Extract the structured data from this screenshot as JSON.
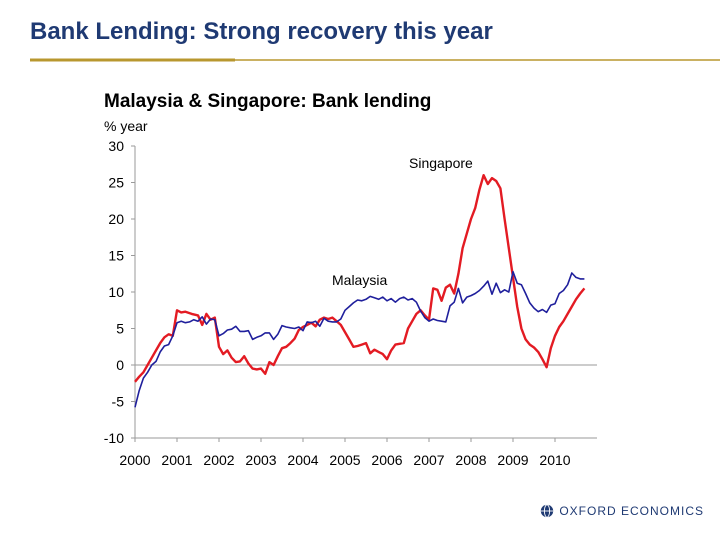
{
  "slide": {
    "title": "Bank Lending: Strong recovery this year",
    "brand": "OXFORD ECONOMICS",
    "colors": {
      "title": "#1f3a73",
      "rule": "#b8972f",
      "brand": "#1f3a73"
    }
  },
  "chart_data": {
    "type": "line",
    "title": "Malaysia & Singapore: Bank lending",
    "ylabel": "% year",
    "xlabel": "",
    "ylim": [
      -10,
      30
    ],
    "yticks": [
      30,
      25,
      20,
      15,
      10,
      5,
      0,
      -5,
      -10
    ],
    "xlim": [
      2000,
      2011
    ],
    "xticks": [
      "2000",
      "2001",
      "2002",
      "2003",
      "2004",
      "2005",
      "2006",
      "2007",
      "2008",
      "2009",
      "2010"
    ],
    "grid": false,
    "series": [
      {
        "name": "Singapore",
        "color": "#e31b23",
        "points": [
          [
            2000.0,
            -2.3
          ],
          [
            2000.1,
            -1.6
          ],
          [
            2000.2,
            -1.0
          ],
          [
            2000.3,
            0.0
          ],
          [
            2000.4,
            1.0
          ],
          [
            2000.5,
            2.0
          ],
          [
            2000.6,
            3.0
          ],
          [
            2000.7,
            3.8
          ],
          [
            2000.8,
            4.2
          ],
          [
            2000.9,
            4.0
          ],
          [
            2001.0,
            7.5
          ],
          [
            2001.1,
            7.2
          ],
          [
            2001.2,
            7.3
          ],
          [
            2001.35,
            7.0
          ],
          [
            2001.5,
            6.8
          ],
          [
            2001.6,
            5.5
          ],
          [
            2001.7,
            7.0
          ],
          [
            2001.8,
            6.2
          ],
          [
            2001.9,
            6.5
          ],
          [
            2002.0,
            2.5
          ],
          [
            2002.1,
            1.5
          ],
          [
            2002.2,
            2.0
          ],
          [
            2002.3,
            1.0
          ],
          [
            2002.4,
            0.4
          ],
          [
            2002.5,
            0.5
          ],
          [
            2002.6,
            1.2
          ],
          [
            2002.7,
            0.2
          ],
          [
            2002.8,
            -0.5
          ],
          [
            2002.9,
            -0.6
          ],
          [
            2003.0,
            -0.5
          ],
          [
            2003.1,
            -1.2
          ],
          [
            2003.2,
            0.4
          ],
          [
            2003.3,
            0.0
          ],
          [
            2003.4,
            1.2
          ],
          [
            2003.5,
            2.3
          ],
          [
            2003.6,
            2.5
          ],
          [
            2003.7,
            3.0
          ],
          [
            2003.8,
            3.6
          ],
          [
            2003.9,
            4.8
          ],
          [
            2004.0,
            5.2
          ],
          [
            2004.1,
            5.5
          ],
          [
            2004.2,
            5.8
          ],
          [
            2004.3,
            5.3
          ],
          [
            2004.4,
            6.2
          ],
          [
            2004.5,
            6.5
          ],
          [
            2004.6,
            6.3
          ],
          [
            2004.7,
            6.5
          ],
          [
            2004.8,
            6.0
          ],
          [
            2004.9,
            5.5
          ],
          [
            2005.0,
            4.5
          ],
          [
            2005.1,
            3.5
          ],
          [
            2005.2,
            2.5
          ],
          [
            2005.3,
            2.6
          ],
          [
            2005.4,
            2.8
          ],
          [
            2005.5,
            3.0
          ],
          [
            2005.6,
            1.6
          ],
          [
            2005.7,
            2.1
          ],
          [
            2005.8,
            1.8
          ],
          [
            2005.9,
            1.5
          ],
          [
            2006.0,
            0.8
          ],
          [
            2006.1,
            2.0
          ],
          [
            2006.2,
            2.8
          ],
          [
            2006.3,
            2.9
          ],
          [
            2006.4,
            3.0
          ],
          [
            2006.5,
            5.0
          ],
          [
            2006.6,
            6.0
          ],
          [
            2006.7,
            7.0
          ],
          [
            2006.8,
            7.5
          ],
          [
            2006.9,
            6.8
          ],
          [
            2007.0,
            6.2
          ],
          [
            2007.1,
            10.5
          ],
          [
            2007.2,
            10.3
          ],
          [
            2007.3,
            8.8
          ],
          [
            2007.4,
            10.6
          ],
          [
            2007.5,
            11.0
          ],
          [
            2007.6,
            9.8
          ],
          [
            2007.7,
            12.5
          ],
          [
            2007.8,
            16.0
          ],
          [
            2007.9,
            18.0
          ],
          [
            2008.0,
            20.0
          ],
          [
            2008.1,
            21.5
          ],
          [
            2008.2,
            24.0
          ],
          [
            2008.3,
            26.0
          ],
          [
            2008.4,
            24.8
          ],
          [
            2008.5,
            25.6
          ],
          [
            2008.6,
            25.2
          ],
          [
            2008.7,
            24.2
          ],
          [
            2008.8,
            20.0
          ],
          [
            2008.9,
            16.0
          ],
          [
            2009.0,
            12.0
          ],
          [
            2009.1,
            8.0
          ],
          [
            2009.2,
            5.0
          ],
          [
            2009.3,
            3.5
          ],
          [
            2009.4,
            2.8
          ],
          [
            2009.5,
            2.4
          ],
          [
            2009.6,
            1.8
          ],
          [
            2009.7,
            0.8
          ],
          [
            2009.8,
            -0.3
          ],
          [
            2009.9,
            2.3
          ],
          [
            2010.0,
            4.0
          ],
          [
            2010.1,
            5.2
          ],
          [
            2010.2,
            6.0
          ],
          [
            2010.3,
            7.0
          ],
          [
            2010.4,
            8.0
          ],
          [
            2010.5,
            9.0
          ],
          [
            2010.6,
            9.8
          ],
          [
            2010.7,
            10.5
          ]
        ]
      },
      {
        "name": "Malaysia",
        "color": "#1f1f9c",
        "points": [
          [
            2000.0,
            -5.8
          ],
          [
            2000.1,
            -3.5
          ],
          [
            2000.2,
            -1.8
          ],
          [
            2000.3,
            -1.0
          ],
          [
            2000.4,
            0.0
          ],
          [
            2000.5,
            0.5
          ],
          [
            2000.6,
            1.8
          ],
          [
            2000.7,
            2.6
          ],
          [
            2000.8,
            2.8
          ],
          [
            2000.9,
            4.0
          ],
          [
            2001.0,
            5.8
          ],
          [
            2001.1,
            6.0
          ],
          [
            2001.2,
            5.8
          ],
          [
            2001.3,
            5.9
          ],
          [
            2001.4,
            6.2
          ],
          [
            2001.5,
            6.0
          ],
          [
            2001.6,
            6.6
          ],
          [
            2001.7,
            5.6
          ],
          [
            2001.8,
            6.3
          ],
          [
            2001.9,
            6.2
          ],
          [
            2002.0,
            4.0
          ],
          [
            2002.1,
            4.3
          ],
          [
            2002.2,
            4.8
          ],
          [
            2002.3,
            4.9
          ],
          [
            2002.4,
            5.3
          ],
          [
            2002.5,
            4.6
          ],
          [
            2002.6,
            4.6
          ],
          [
            2002.7,
            4.7
          ],
          [
            2002.8,
            3.5
          ],
          [
            2002.9,
            3.8
          ],
          [
            2003.0,
            4.0
          ],
          [
            2003.1,
            4.4
          ],
          [
            2003.2,
            4.4
          ],
          [
            2003.3,
            3.5
          ],
          [
            2003.4,
            4.2
          ],
          [
            2003.5,
            5.4
          ],
          [
            2003.6,
            5.2
          ],
          [
            2003.7,
            5.1
          ],
          [
            2003.8,
            5.0
          ],
          [
            2003.9,
            5.2
          ],
          [
            2004.0,
            4.7
          ],
          [
            2004.1,
            5.9
          ],
          [
            2004.2,
            5.8
          ],
          [
            2004.3,
            6.0
          ],
          [
            2004.4,
            5.3
          ],
          [
            2004.5,
            6.4
          ],
          [
            2004.6,
            6.0
          ],
          [
            2004.7,
            5.9
          ],
          [
            2004.8,
            5.9
          ],
          [
            2004.9,
            6.3
          ],
          [
            2005.0,
            7.5
          ],
          [
            2005.1,
            8.0
          ],
          [
            2005.2,
            8.5
          ],
          [
            2005.3,
            8.9
          ],
          [
            2005.4,
            8.8
          ],
          [
            2005.5,
            9.0
          ],
          [
            2005.6,
            9.4
          ],
          [
            2005.7,
            9.2
          ],
          [
            2005.8,
            9.0
          ],
          [
            2005.9,
            9.3
          ],
          [
            2006.0,
            8.8
          ],
          [
            2006.1,
            9.1
          ],
          [
            2006.2,
            8.6
          ],
          [
            2006.3,
            9.1
          ],
          [
            2006.4,
            9.3
          ],
          [
            2006.5,
            8.9
          ],
          [
            2006.6,
            9.1
          ],
          [
            2006.7,
            8.6
          ],
          [
            2006.8,
            7.4
          ],
          [
            2006.9,
            6.5
          ],
          [
            2007.0,
            6.0
          ],
          [
            2007.1,
            6.3
          ],
          [
            2007.2,
            6.1
          ],
          [
            2007.3,
            6.0
          ],
          [
            2007.4,
            5.9
          ],
          [
            2007.5,
            8.1
          ],
          [
            2007.6,
            8.6
          ],
          [
            2007.7,
            10.5
          ],
          [
            2007.8,
            8.5
          ],
          [
            2007.9,
            9.3
          ],
          [
            2008.0,
            9.5
          ],
          [
            2008.1,
            9.8
          ],
          [
            2008.2,
            10.2
          ],
          [
            2008.3,
            10.8
          ],
          [
            2008.4,
            11.5
          ],
          [
            2008.5,
            9.7
          ],
          [
            2008.6,
            11.2
          ],
          [
            2008.7,
            9.9
          ],
          [
            2008.8,
            10.3
          ],
          [
            2008.9,
            10.0
          ],
          [
            2009.0,
            12.8
          ],
          [
            2009.1,
            11.2
          ],
          [
            2009.2,
            11.0
          ],
          [
            2009.3,
            9.8
          ],
          [
            2009.4,
            8.5
          ],
          [
            2009.5,
            7.8
          ],
          [
            2009.6,
            7.3
          ],
          [
            2009.7,
            7.6
          ],
          [
            2009.8,
            7.2
          ],
          [
            2009.9,
            8.2
          ],
          [
            2010.0,
            8.4
          ],
          [
            2010.1,
            9.8
          ],
          [
            2010.2,
            10.2
          ],
          [
            2010.3,
            11.0
          ],
          [
            2010.4,
            12.6
          ],
          [
            2010.5,
            12.0
          ],
          [
            2010.6,
            11.8
          ],
          [
            2010.7,
            11.8
          ]
        ]
      }
    ]
  }
}
